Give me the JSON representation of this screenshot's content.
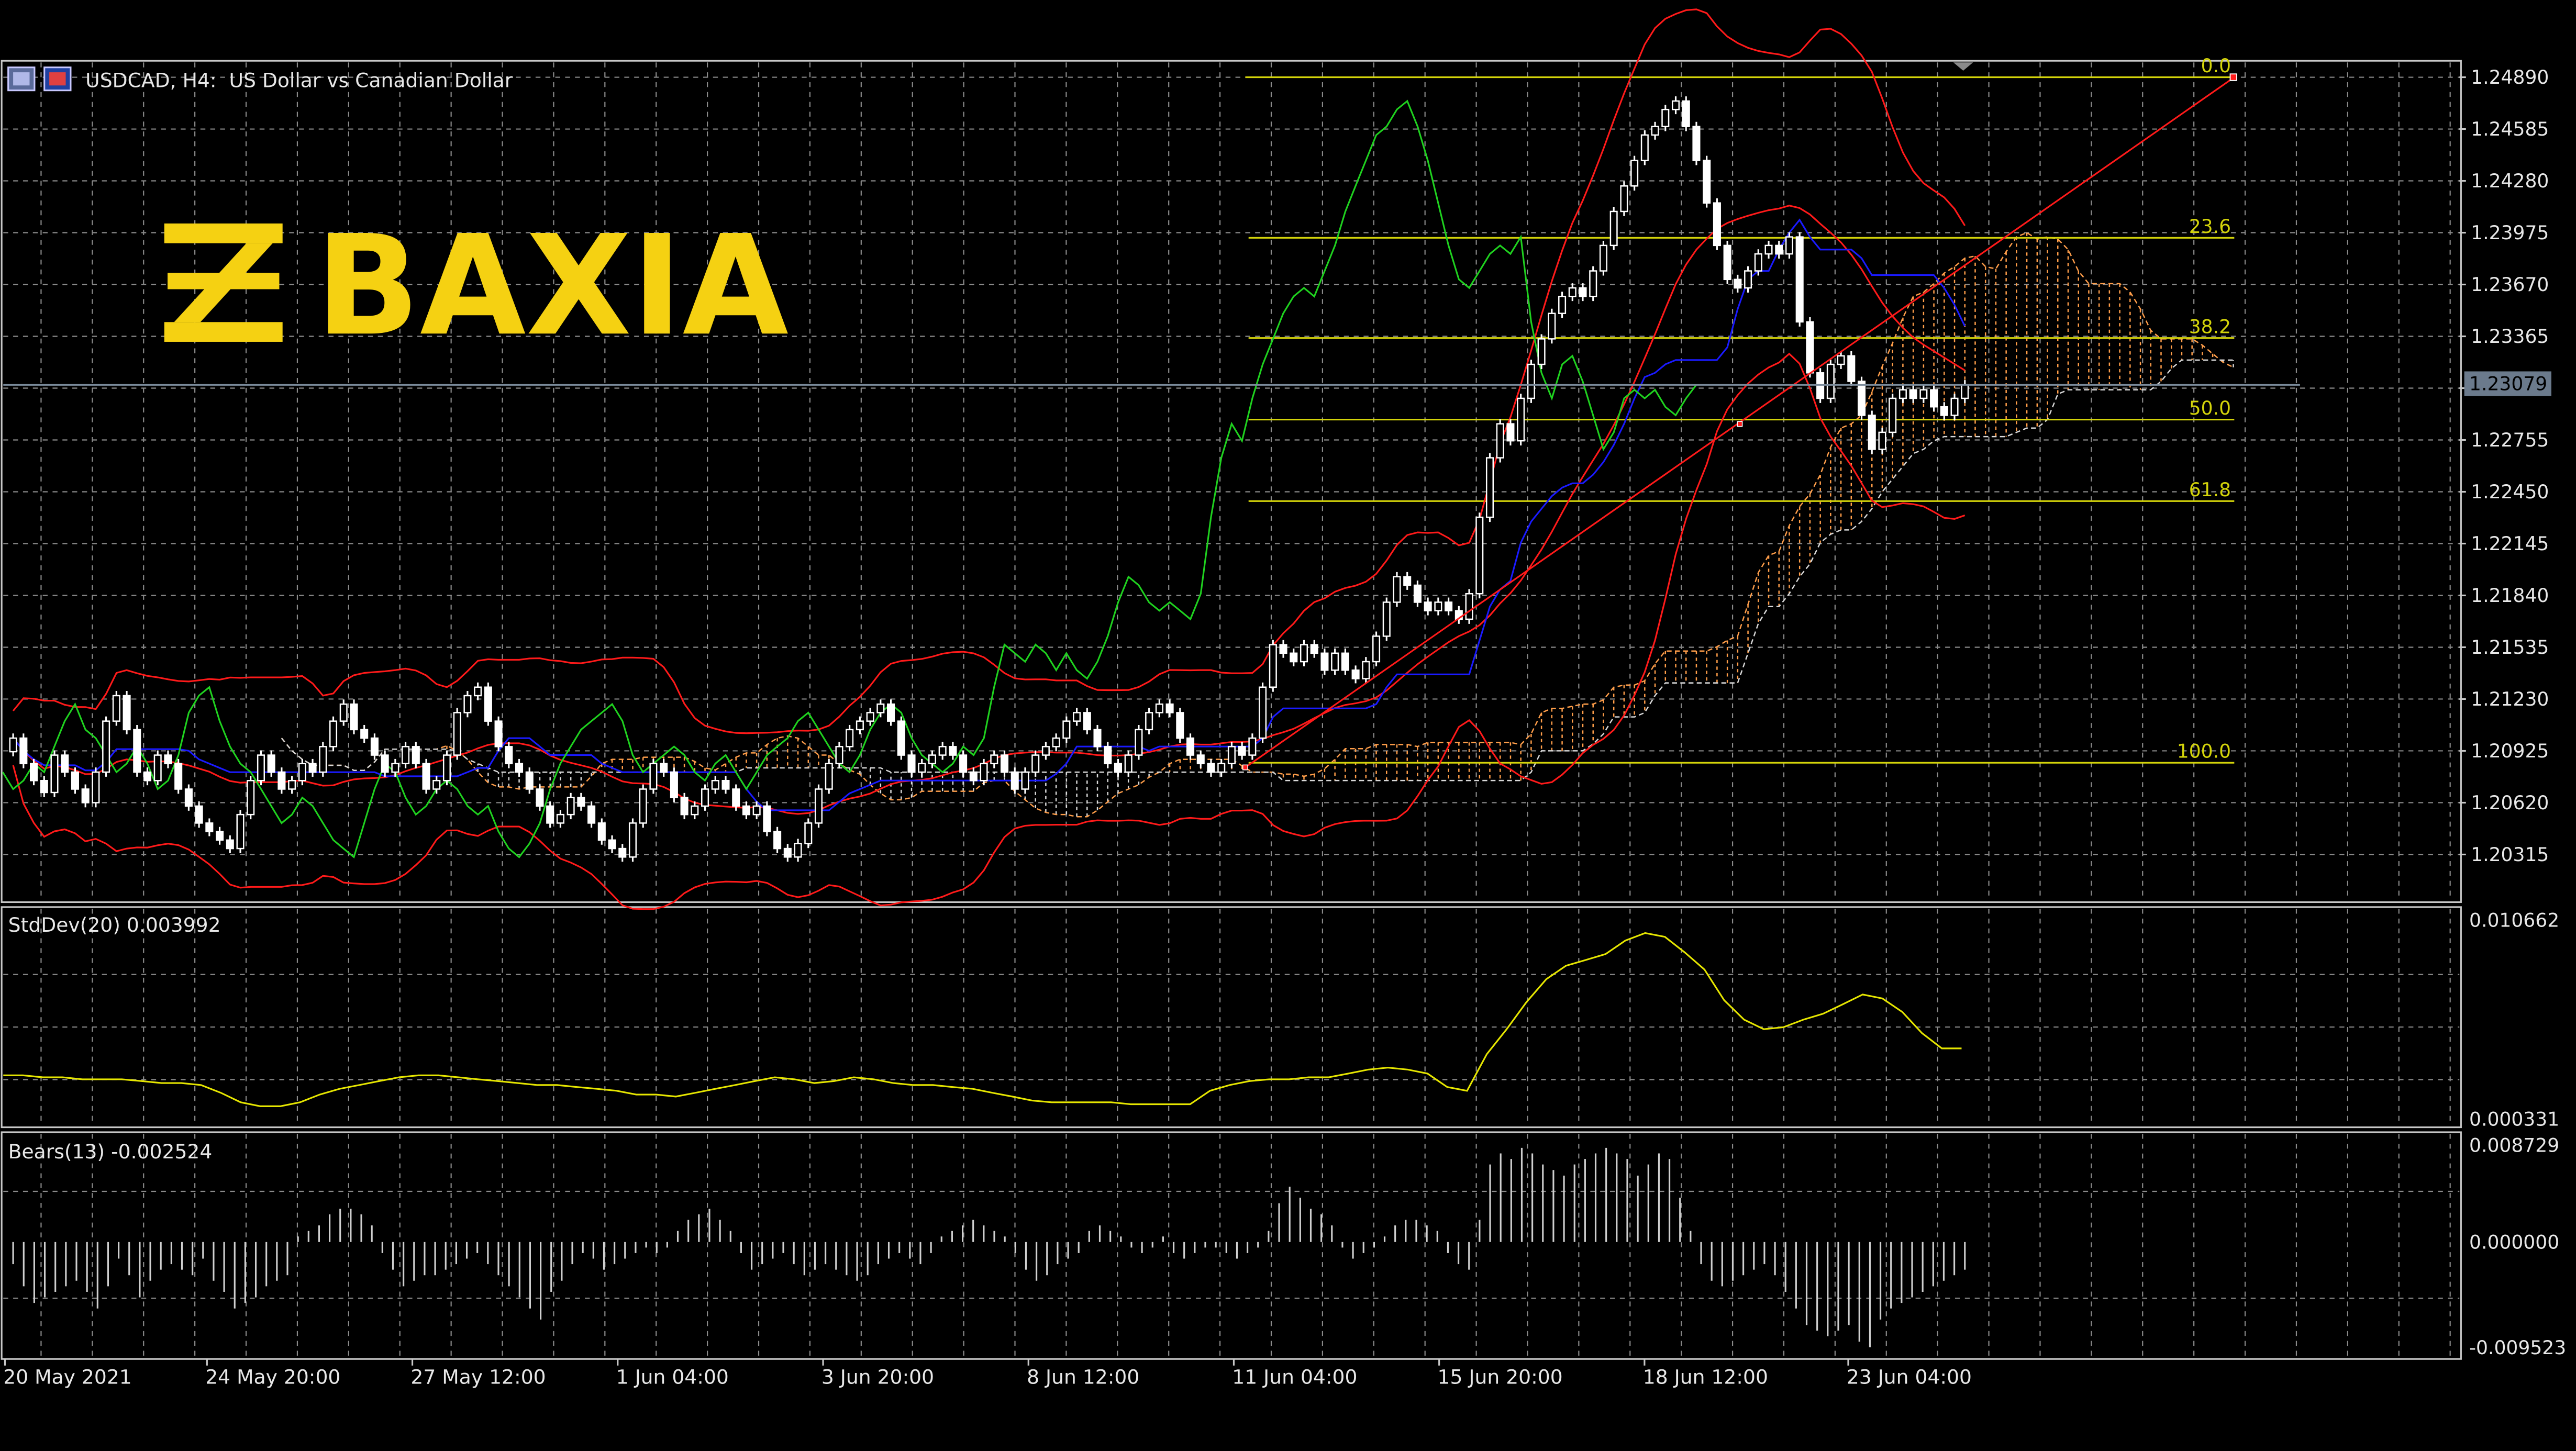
{
  "header": {
    "symbol_text": "USDCAD, H4:  US Dollar vs Canadian Dollar"
  },
  "logo": {
    "text": "BAXIA",
    "color": "#f5d112"
  },
  "colors": {
    "background": "#000000",
    "frame": "#c8c8c8",
    "grid": "#8a8a8a",
    "candle": "#ffffff",
    "bollinger": "#ff1a1a",
    "kijun_sen": "#1a1aff",
    "chikou_span": "#1fd21f",
    "cloud": "#ff9e4a",
    "cloud_alt": "#d8d8d8",
    "fibonacci": "#d4d40a",
    "stddev": "#e6e600",
    "bears": "#d0d0d0",
    "price_tag": "#6b7a8c",
    "price_line": "#7a8a9a"
  },
  "chart_data": [
    {
      "type": "candlestick",
      "panel": "main",
      "symbol": "USDCAD",
      "timeframe": "H4",
      "title": "USDCAD, H4:  US Dollar vs Canadian Dollar",
      "x_labels": [
        "20 May 2021",
        "24 May 20:00",
        "27 May 12:00",
        "1 Jun 04:00",
        "3 Jun 20:00",
        "8 Jun 12:00",
        "11 Jun 04:00",
        "15 Jun 20:00",
        "18 Jun 12:00",
        "23 Jun 04:00"
      ],
      "y_ticks": [
        1.2489,
        1.24585,
        1.2428,
        1.23975,
        1.2367,
        1.23365,
        1.2306,
        1.22755,
        1.2245,
        1.22145,
        1.2184,
        1.21535,
        1.2123,
        1.20925,
        1.2062,
        1.20315
      ],
      "y_tick_labels": [
        "1.24890",
        "1.24585",
        "1.24280",
        "1.23975",
        "1.23670",
        "1.23365",
        "",
        "1.22755",
        "1.22450",
        "1.22145",
        "1.21840",
        "1.21535",
        "1.21230",
        "1.20925",
        "1.20620",
        "1.20315"
      ],
      "ylim": [
        1.2004,
        1.2498
      ],
      "current_price": 1.23079,
      "current_price_label": "1.23079",
      "grid": true,
      "close_series_approx": [
        1.21,
        1.2085,
        1.2075,
        1.2068,
        1.209,
        1.208,
        1.207,
        1.2062,
        1.208,
        1.211,
        1.2125,
        1.2105,
        1.208,
        1.2075,
        1.209,
        1.2085,
        1.207,
        1.206,
        1.205,
        1.2045,
        1.204,
        1.2035,
        1.2055,
        1.2075,
        1.209,
        1.208,
        1.207,
        1.2075,
        1.2085,
        1.208,
        1.2095,
        1.211,
        1.212,
        1.2105,
        1.21,
        1.209,
        1.208,
        1.2085,
        1.2095,
        1.2085,
        1.207,
        1.2075,
        1.209,
        1.2115,
        1.2125,
        1.213,
        1.211,
        1.2095,
        1.2085,
        1.208,
        1.207,
        1.206,
        1.205,
        1.2055,
        1.2065,
        1.206,
        1.205,
        1.204,
        1.2035,
        1.203,
        1.205,
        1.207,
        1.2085,
        1.208,
        1.2065,
        1.2055,
        1.206,
        1.207,
        1.2075,
        1.207,
        1.206,
        1.2055,
        1.206,
        1.2045,
        1.2035,
        1.203,
        1.2038,
        1.205,
        1.207,
        1.2085,
        1.2095,
        1.2105,
        1.211,
        1.2115,
        1.212,
        1.211,
        1.209,
        1.208,
        1.2085,
        1.209,
        1.2095,
        1.209,
        1.208,
        1.2075,
        1.2085,
        1.209,
        1.208,
        1.207,
        1.208,
        1.209,
        1.2095,
        1.21,
        1.211,
        1.2115,
        1.2105,
        1.2095,
        1.2085,
        1.208,
        1.209,
        1.2105,
        1.2115,
        1.212,
        1.2115,
        1.21,
        1.209,
        1.2085,
        1.208,
        1.2085,
        1.2095,
        1.209,
        1.21,
        1.213,
        1.2155,
        1.215,
        1.2145,
        1.2155,
        1.215,
        1.214,
        1.215,
        1.214,
        1.2135,
        1.2145,
        1.216,
        1.218,
        1.2195,
        1.219,
        1.218,
        1.2175,
        1.218,
        1.2175,
        1.217,
        1.2185,
        1.223,
        1.2265,
        1.2285,
        1.2275,
        1.23,
        1.232,
        1.2335,
        1.235,
        1.236,
        1.2365,
        1.236,
        1.2375,
        1.239,
        1.241,
        1.2425,
        1.244,
        1.2455,
        1.246,
        1.247,
        1.2475,
        1.246,
        1.244,
        1.2415,
        1.239,
        1.237,
        1.2365,
        1.2375,
        1.2385,
        1.239,
        1.2385,
        1.2395,
        1.2345,
        1.2315,
        1.23,
        1.232,
        1.2325,
        1.231,
        1.229,
        1.227,
        1.228,
        1.23,
        1.2305,
        1.23,
        1.2305,
        1.2295,
        1.229,
        1.23,
        1.2308
      ],
      "fibonacci": {
        "levels": [
          {
            "label": "0.0",
            "price": 1.2489
          },
          {
            "label": "23.6",
            "price": 1.23945
          },
          {
            "label": "38.2",
            "price": 1.23355
          },
          {
            "label": "50.0",
            "price": 1.22875
          },
          {
            "label": "61.8",
            "price": 1.22395
          },
          {
            "label": "100.0",
            "price": 1.20855
          }
        ]
      },
      "indicators": [
        "Bollinger Bands",
        "Ichimoku Kinko Hyo",
        "Fibonacci Retracement",
        "Trendline"
      ]
    },
    {
      "type": "line",
      "panel": "indicator",
      "title": "StdDev(20) 0.003992",
      "name": "StdDev(20)",
      "current_value": 0.003992,
      "y_ticks": [
        0.010662,
        0.000331
      ],
      "y_tick_labels": [
        "0.010662",
        "0.000331"
      ],
      "ylim": [
        0.000331,
        0.010662
      ],
      "values": [
        0.0026,
        0.0026,
        0.0025,
        0.0025,
        0.0024,
        0.0024,
        0.0024,
        0.0023,
        0.0022,
        0.0022,
        0.0021,
        0.0017,
        0.0012,
        0.001,
        0.001,
        0.0012,
        0.0016,
        0.0019,
        0.0021,
        0.0023,
        0.0025,
        0.0026,
        0.0026,
        0.0025,
        0.0024,
        0.0023,
        0.0022,
        0.0021,
        0.0021,
        0.002,
        0.0019,
        0.0018,
        0.0016,
        0.0016,
        0.0015,
        0.0017,
        0.0019,
        0.0021,
        0.0023,
        0.0025,
        0.0024,
        0.0022,
        0.0023,
        0.0025,
        0.0024,
        0.0022,
        0.0021,
        0.0021,
        0.002,
        0.0019,
        0.0017,
        0.0015,
        0.0013,
        0.0012,
        0.0012,
        0.0012,
        0.0012,
        0.0011,
        0.0011,
        0.0011,
        0.0011,
        0.0018,
        0.0021,
        0.0023,
        0.0024,
        0.0024,
        0.0025,
        0.0025,
        0.0027,
        0.0029,
        0.003,
        0.0029,
        0.0027,
        0.002,
        0.0018,
        0.0037,
        0.005,
        0.0064,
        0.0076,
        0.0083,
        0.0086,
        0.0089,
        0.0096,
        0.01,
        0.0098,
        0.009,
        0.0081,
        0.0065,
        0.0055,
        0.005,
        0.0051,
        0.0055,
        0.0058,
        0.0063,
        0.0068,
        0.0066,
        0.0059,
        0.0048,
        0.004,
        0.004
      ]
    },
    {
      "type": "bar",
      "panel": "indicator",
      "title": "Bears(13) -0.002524",
      "name": "Bears(13)",
      "current_value": -0.002524,
      "y_ticks": [
        0.008729,
        0.0,
        -0.009523
      ],
      "y_tick_labels": [
        "0.008729",
        "0.000000",
        "-0.009523"
      ],
      "ylim": [
        -0.009523,
        0.008729
      ],
      "values": [
        -0.002,
        -0.004,
        -0.0055,
        -0.005,
        -0.0045,
        -0.004,
        -0.0035,
        -0.0045,
        -0.006,
        -0.004,
        -0.0015,
        -0.003,
        -0.005,
        -0.0035,
        -0.0025,
        -0.002,
        -0.0025,
        -0.003,
        -0.0015,
        -0.0035,
        -0.0045,
        -0.006,
        -0.0055,
        -0.005,
        -0.004,
        -0.0035,
        -0.003,
        0.0005,
        0.001,
        0.0015,
        0.0025,
        0.003,
        0.003,
        0.0025,
        0.0015,
        -0.001,
        -0.0025,
        -0.004,
        -0.0035,
        -0.003,
        -0.003,
        -0.0025,
        -0.002,
        -0.0015,
        -0.001,
        -0.002,
        -0.003,
        -0.004,
        -0.005,
        -0.006,
        -0.007,
        -0.0045,
        -0.0035,
        -0.002,
        -0.001,
        -0.0015,
        -0.0025,
        -0.002,
        -0.0015,
        -0.001,
        -0.0005,
        -0.001,
        -0.0005,
        0.001,
        0.002,
        0.0025,
        0.003,
        0.002,
        0.001,
        -0.001,
        -0.0025,
        -0.002,
        -0.0015,
        -0.001,
        -0.002,
        -0.003,
        -0.0025,
        -0.002,
        -0.0025,
        -0.003,
        -0.0035,
        -0.003,
        -0.002,
        -0.0015,
        -0.001,
        -0.0015,
        -0.002,
        -0.001,
        0.0005,
        0.001,
        0.0015,
        0.002,
        0.0015,
        0.001,
        0.0005,
        -0.001,
        -0.0025,
        -0.0035,
        -0.003,
        -0.002,
        -0.0015,
        -0.001,
        0.001,
        0.0015,
        0.001,
        0.0005,
        -0.0005,
        -0.001,
        -0.0005,
        0.0005,
        -0.001,
        -0.0015,
        -0.001,
        -0.0005,
        -0.0005,
        -0.001,
        -0.0015,
        -0.001,
        -0.0005,
        0.001,
        0.0035,
        0.005,
        0.004,
        0.003,
        0.0025,
        0.0015,
        -0.0005,
        -0.0015,
        -0.001,
        -0.0005,
        0.0005,
        0.0015,
        0.002,
        0.002,
        0.0015,
        0.001,
        -0.001,
        -0.002,
        -0.0025,
        0.002,
        0.007,
        0.008,
        0.0075,
        0.0085,
        0.008,
        0.007,
        0.0065,
        0.006,
        0.007,
        0.0075,
        0.008,
        0.0085,
        0.008,
        0.0075,
        0.006,
        0.007,
        0.008,
        0.0075,
        0.004,
        0.001,
        -0.002,
        -0.0035,
        -0.004,
        -0.0035,
        -0.003,
        -0.0025,
        -0.002,
        -0.003,
        -0.0045,
        -0.006,
        -0.0075,
        -0.008,
        -0.0085,
        -0.008,
        -0.0075,
        -0.009,
        -0.0095,
        -0.007,
        -0.006,
        -0.0055,
        -0.005,
        -0.0045,
        -0.004,
        -0.0035,
        -0.003,
        -0.0025
      ]
    }
  ]
}
